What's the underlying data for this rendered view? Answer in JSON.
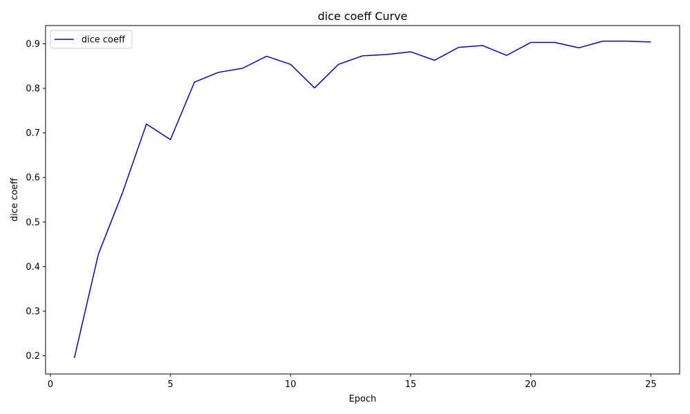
{
  "chart_data": {
    "type": "line",
    "title": "dice coeff Curve",
    "xlabel": "Epoch",
    "ylabel": "dice coeff",
    "xlim": [
      -0.2,
      26.2
    ],
    "ylim": [
      0.159,
      0.941
    ],
    "xticks": [
      0,
      5,
      10,
      15,
      20,
      25
    ],
    "yticks": [
      0.2,
      0.3,
      0.4,
      0.5,
      0.6,
      0.7,
      0.8,
      0.9
    ],
    "ytick_labels": [
      "0.2",
      "0.3",
      "0.4",
      "0.5",
      "0.6",
      "0.7",
      "0.8",
      "0.9"
    ],
    "grid": false,
    "legend_position": "top-left",
    "x": [
      1,
      2,
      3,
      4,
      5,
      6,
      7,
      8,
      9,
      10,
      11,
      12,
      13,
      14,
      15,
      16,
      17,
      18,
      19,
      20,
      21,
      22,
      23,
      24,
      25
    ],
    "series": [
      {
        "name": "dice coeff",
        "color": "#0000cc",
        "values": [
          0.195,
          0.428,
          0.565,
          0.72,
          0.685,
          0.814,
          0.836,
          0.845,
          0.872,
          0.854,
          0.801,
          0.854,
          0.873,
          0.876,
          0.882,
          0.863,
          0.892,
          0.896,
          0.874,
          0.903,
          0.903,
          0.891,
          0.906,
          0.906,
          0.904
        ]
      }
    ]
  }
}
